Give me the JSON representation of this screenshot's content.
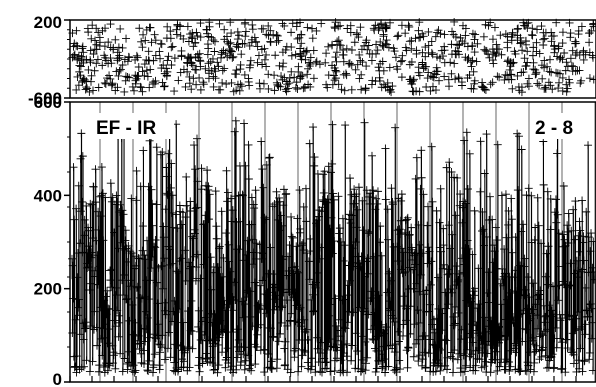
{
  "chart_data": [
    {
      "type": "scatter",
      "panel": "top",
      "title": "",
      "xlabel": "",
      "ylabel": "",
      "ylim": [
        -600,
        200
      ],
      "y_ticks": [
        200,
        -600
      ],
      "y_tick_labels": [
        "200",
        "-600"
      ],
      "band": [
        -540,
        180
      ],
      "marker": "plus",
      "color": "#000000"
    },
    {
      "type": "scatter",
      "panel": "bottom",
      "title": "",
      "xlabel": "",
      "ylabel": "",
      "ylim": [
        0,
        600
      ],
      "y_ticks": [
        0,
        200,
        400,
        600
      ],
      "y_tick_labels": [
        "0",
        "200",
        "400",
        "600"
      ],
      "annotations": [
        "EF - IR",
        "2 - 8"
      ],
      "typical_range": [
        20,
        420
      ],
      "max_observed": 560,
      "marker": "plus",
      "color": "#000000"
    }
  ]
}
